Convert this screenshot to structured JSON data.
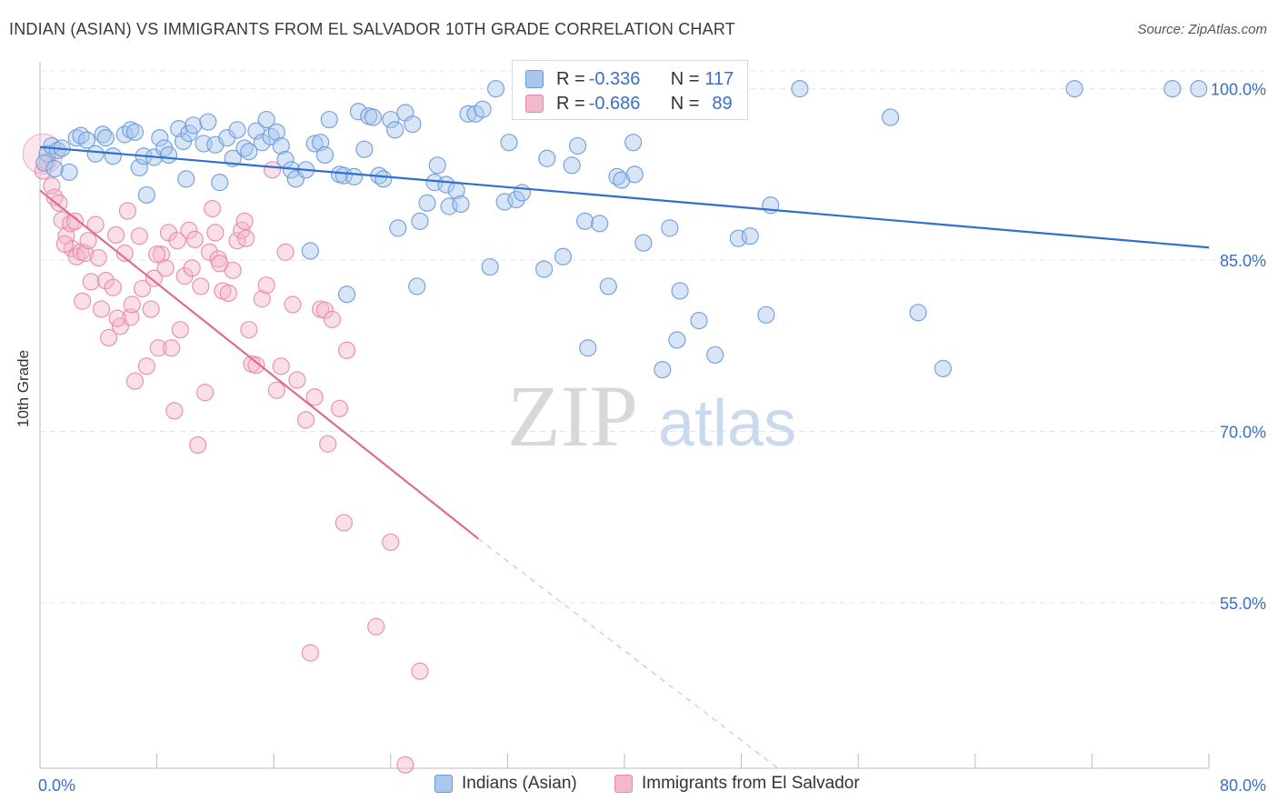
{
  "title": "INDIAN (ASIAN) VS IMMIGRANTS FROM EL SALVADOR 10TH GRADE CORRELATION CHART",
  "source": "Source: ZipAtlas.com",
  "watermark": {
    "zip": "ZIP",
    "atlas": "atlas"
  },
  "legend_top": [
    {
      "r_label": "R = ",
      "r_value": "-0.336",
      "n_label": "N = ",
      "n_value": "117"
    },
    {
      "r_label": "R = ",
      "r_value": "-0.686",
      "n_label": "N = ",
      "n_value": "89"
    }
  ],
  "colors": {
    "blue_fill": "#a8c6ee",
    "blue_stroke": "#6c9ad8",
    "blue_line": "#2f6fd0",
    "pink_fill": "#f4b8cc",
    "pink_stroke": "#e888a8",
    "pink_line": "#e06a96",
    "tick_text": "#3a6fc4",
    "grid": "#e4e4e4"
  },
  "chart_data": {
    "type": "scatter",
    "title": "INDIAN (ASIAN) VS IMMIGRANTS FROM EL SALVADOR 10TH GRADE CORRELATION CHART",
    "xlabel": "",
    "ylabel": "10th Grade",
    "xlim": [
      0,
      80
    ],
    "ylim": [
      40.5,
      102.2
    ],
    "x_tick_labels": [
      "0.0%",
      "80.0%"
    ],
    "y_ticks": [
      55,
      70,
      85,
      100
    ],
    "y_tick_labels": [
      "55.0%",
      "70.0%",
      "85.0%",
      "100.0%"
    ],
    "grid": true,
    "legend_placement": "bottom",
    "series": [
      {
        "name": "Indians (Asian)",
        "trend": {
          "x0": 0,
          "y0": 94.9,
          "x1": 80,
          "y1": 86.1
        },
        "points": [
          [
            0.5,
            94.3
          ],
          [
            0.8,
            95.0
          ],
          [
            1.2,
            94.6
          ],
          [
            1.5,
            94.8
          ],
          [
            2,
            92.7
          ],
          [
            2.5,
            95.7
          ],
          [
            2.8,
            95.9
          ],
          [
            3.2,
            95.5
          ],
          [
            3.8,
            94.3
          ],
          [
            4.3,
            96.0
          ],
          [
            4.5,
            95.7
          ],
          [
            5,
            94.1
          ],
          [
            5.8,
            96.0
          ],
          [
            6.2,
            96.4
          ],
          [
            6.8,
            93.1
          ],
          [
            7.1,
            94.1
          ],
          [
            7.3,
            90.7
          ],
          [
            7.8,
            94.0
          ],
          [
            8.2,
            95.7
          ],
          [
            8.5,
            94.8
          ],
          [
            8.8,
            94.2
          ],
          [
            9.5,
            96.5
          ],
          [
            9.8,
            95.4
          ],
          [
            10,
            92.1
          ],
          [
            10.2,
            96.1
          ],
          [
            10.5,
            96.8
          ],
          [
            11.2,
            95.2
          ],
          [
            11.5,
            97.1
          ],
          [
            12,
            95.1
          ],
          [
            12.3,
            91.8
          ],
          [
            12.8,
            95.7
          ],
          [
            13.2,
            93.9
          ],
          [
            13.5,
            96.4
          ],
          [
            14,
            94.8
          ],
          [
            14.3,
            94.5
          ],
          [
            14.8,
            96.3
          ],
          [
            15.2,
            95.3
          ],
          [
            15.5,
            97.3
          ],
          [
            15.8,
            95.8
          ],
          [
            16.2,
            96.2
          ],
          [
            16.5,
            95.0
          ],
          [
            16.8,
            93.8
          ],
          [
            17.2,
            92.9
          ],
          [
            17.5,
            92.1
          ],
          [
            18.2,
            92.9
          ],
          [
            18.5,
            85.8
          ],
          [
            18.8,
            95.2
          ],
          [
            19.2,
            95.3
          ],
          [
            19.5,
            94.2
          ],
          [
            19.8,
            97.3
          ],
          [
            20.5,
            92.5
          ],
          [
            20.8,
            92.4
          ],
          [
            21,
            82.0
          ],
          [
            21.5,
            92.3
          ],
          [
            21.8,
            98.0
          ],
          [
            22.2,
            94.7
          ],
          [
            22.5,
            97.6
          ],
          [
            22.8,
            97.5
          ],
          [
            23.2,
            92.4
          ],
          [
            23.5,
            92.1
          ],
          [
            24,
            97.3
          ],
          [
            24.3,
            96.4
          ],
          [
            24.5,
            87.8
          ],
          [
            25,
            97.9
          ],
          [
            25.5,
            96.9
          ],
          [
            25.8,
            82.7
          ],
          [
            26,
            88.4
          ],
          [
            26.5,
            90.0
          ],
          [
            27,
            91.8
          ],
          [
            27.2,
            93.3
          ],
          [
            27.8,
            91.6
          ],
          [
            28,
            89.7
          ],
          [
            28.5,
            91.1
          ],
          [
            28.8,
            89.9
          ],
          [
            29.3,
            97.8
          ],
          [
            29.8,
            97.8
          ],
          [
            30.3,
            98.2
          ],
          [
            30.8,
            84.4
          ],
          [
            31.2,
            100.0
          ],
          [
            31.8,
            90.1
          ],
          [
            32.1,
            95.3
          ],
          [
            32.6,
            90.3
          ],
          [
            33.0,
            90.9
          ],
          [
            34.5,
            84.2
          ],
          [
            34.7,
            93.9
          ],
          [
            35.8,
            85.3
          ],
          [
            36.4,
            93.3
          ],
          [
            36.8,
            95.0
          ],
          [
            37.3,
            88.4
          ],
          [
            37.5,
            77.3
          ],
          [
            38.3,
            88.2
          ],
          [
            38.9,
            82.7
          ],
          [
            39.5,
            92.3
          ],
          [
            39.8,
            92.0
          ],
          [
            40.6,
            95.3
          ],
          [
            40.7,
            92.5
          ],
          [
            41.3,
            86.5
          ],
          [
            42.6,
            75.4
          ],
          [
            43.1,
            87.8
          ],
          [
            43.6,
            78.0
          ],
          [
            43.8,
            82.3
          ],
          [
            45.1,
            79.7
          ],
          [
            46.2,
            76.7
          ],
          [
            47.8,
            86.9
          ],
          [
            48.6,
            87.1
          ],
          [
            49.7,
            80.2
          ],
          [
            50.0,
            89.8
          ],
          [
            52.0,
            100.0
          ],
          [
            58.2,
            97.5
          ],
          [
            60.1,
            80.4
          ],
          [
            61.8,
            75.5
          ],
          [
            70.8,
            100.0
          ],
          [
            77.5,
            100.0
          ],
          [
            79.3,
            100.0
          ],
          [
            0.3,
            93.5
          ],
          [
            1.0,
            93.0
          ],
          [
            6.5,
            96.2
          ]
        ]
      },
      {
        "name": "Immigrants from El Salvador",
        "trend": {
          "x0": 0,
          "y0": 91.1,
          "x1": 30,
          "y1": 60.6,
          "dash_to": {
            "x": 50.5,
            "y": 40.5
          }
        },
        "points": [
          [
            0.2,
            92.8
          ],
          [
            0.5,
            93.6
          ],
          [
            0.8,
            91.5
          ],
          [
            1,
            90.5
          ],
          [
            1.3,
            90.0
          ],
          [
            1.5,
            88.5
          ],
          [
            1.8,
            87.1
          ],
          [
            2.1,
            88.2
          ],
          [
            2.2,
            86.0
          ],
          [
            2.5,
            85.3
          ],
          [
            2.8,
            85.7
          ],
          [
            2.9,
            81.4
          ],
          [
            3.1,
            85.6
          ],
          [
            3.3,
            86.7
          ],
          [
            3.5,
            83.1
          ],
          [
            3.8,
            88.1
          ],
          [
            4.0,
            85.2
          ],
          [
            4.2,
            80.7
          ],
          [
            4.5,
            83.2
          ],
          [
            4.7,
            78.2
          ],
          [
            5.0,
            82.6
          ],
          [
            5.2,
            87.2
          ],
          [
            5.5,
            79.2
          ],
          [
            5.8,
            85.6
          ],
          [
            6.0,
            89.3
          ],
          [
            6.2,
            80.0
          ],
          [
            6.5,
            74.4
          ],
          [
            6.8,
            87.1
          ],
          [
            7.0,
            82.5
          ],
          [
            7.3,
            75.7
          ],
          [
            7.6,
            80.7
          ],
          [
            7.8,
            83.4
          ],
          [
            8.1,
            77.3
          ],
          [
            8.3,
            85.5
          ],
          [
            8.6,
            84.3
          ],
          [
            8.8,
            87.4
          ],
          [
            9.0,
            77.3
          ],
          [
            9.2,
            71.8
          ],
          [
            9.4,
            86.7
          ],
          [
            9.6,
            78.9
          ],
          [
            9.9,
            83.6
          ],
          [
            10.2,
            87.6
          ],
          [
            10.4,
            84.3
          ],
          [
            10.6,
            86.8
          ],
          [
            10.8,
            68.8
          ],
          [
            11.0,
            82.7
          ],
          [
            11.3,
            73.4
          ],
          [
            11.6,
            85.7
          ],
          [
            11.8,
            89.5
          ],
          [
            12.0,
            87.4
          ],
          [
            12.2,
            85.1
          ],
          [
            12.5,
            82.3
          ],
          [
            12.9,
            82.1
          ],
          [
            13.2,
            84.1
          ],
          [
            13.5,
            86.7
          ],
          [
            13.8,
            87.6
          ],
          [
            14.0,
            88.4
          ],
          [
            14.3,
            78.9
          ],
          [
            14.5,
            75.9
          ],
          [
            14.8,
            75.8
          ],
          [
            15.2,
            81.6
          ],
          [
            15.5,
            82.8
          ],
          [
            15.9,
            92.9
          ],
          [
            16.2,
            73.6
          ],
          [
            16.5,
            75.7
          ],
          [
            16.8,
            85.7
          ],
          [
            17.3,
            81.1
          ],
          [
            17.6,
            74.5
          ],
          [
            18.2,
            71.0
          ],
          [
            18.5,
            50.6
          ],
          [
            18.8,
            73.0
          ],
          [
            19.2,
            80.7
          ],
          [
            19.5,
            80.6
          ],
          [
            19.7,
            68.9
          ],
          [
            20.0,
            79.8
          ],
          [
            20.5,
            72.0
          ],
          [
            20.8,
            62.0
          ],
          [
            21.0,
            77.1
          ],
          [
            23.0,
            52.9
          ],
          [
            24.0,
            60.3
          ],
          [
            25.0,
            40.8
          ],
          [
            26.0,
            49.0
          ],
          [
            1.7,
            86.4
          ],
          [
            2.4,
            88.4
          ],
          [
            5.3,
            79.9
          ],
          [
            6.3,
            81.1
          ],
          [
            8.0,
            85.5
          ],
          [
            12.3,
            84.7
          ],
          [
            14.1,
            86.9
          ]
        ]
      }
    ]
  }
}
